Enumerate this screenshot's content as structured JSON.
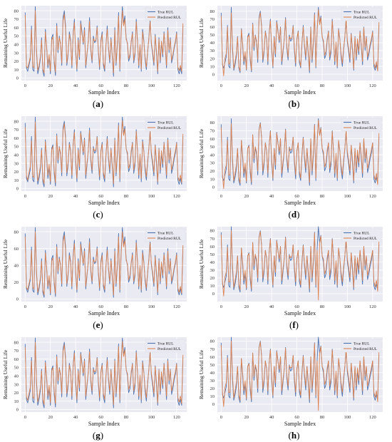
{
  "figure": {
    "panels": [
      {
        "caption_letter": "a"
      },
      {
        "caption_letter": "b"
      },
      {
        "caption_letter": "c"
      },
      {
        "caption_letter": "d"
      },
      {
        "caption_letter": "e"
      },
      {
        "caption_letter": "f"
      },
      {
        "caption_letter": "g"
      },
      {
        "caption_letter": "h"
      }
    ]
  },
  "chart_data": [
    {
      "panel": "a",
      "type": "line",
      "xlabel": "Sample Index",
      "ylabel": "Remaining Useful Life",
      "xlim": [
        -3,
        128
      ],
      "ylim": [
        -3,
        86
      ],
      "xticks": [
        0,
        20,
        40,
        60,
        80,
        100,
        120
      ],
      "yticks": [
        0,
        10,
        20,
        30,
        40,
        50,
        60,
        70,
        80
      ],
      "grid": true,
      "legend_position": "top-right",
      "legend": [
        "True RUL",
        "Predicted RUL"
      ],
      "colors": {
        "true": "#4c72b0",
        "pred": "#dd8452",
        "background": "#eaeaf2"
      }
    },
    {
      "panel": "b",
      "type": "line",
      "xlabel": "Sample Index",
      "ylabel": "Remaining Useful Life",
      "xlim": [
        -3,
        128
      ],
      "ylim": [
        -8,
        87
      ],
      "xticks": [
        0,
        20,
        40,
        60,
        80,
        100,
        120
      ],
      "yticks": [
        0,
        10,
        20,
        30,
        40,
        50,
        60,
        70,
        80
      ],
      "grid": true,
      "legend_position": "top-right",
      "legend": [
        "True RUL",
        "Predicted RUL"
      ],
      "colors": {
        "true": "#4c72b0",
        "pred": "#dd8452",
        "background": "#eaeaf2"
      }
    },
    {
      "panel": "c",
      "type": "line",
      "xlabel": "Sample Index",
      "ylabel": "Remaining Useful Life",
      "xlim": [
        -3,
        128
      ],
      "ylim": [
        -3,
        86
      ],
      "xticks": [
        0,
        20,
        40,
        60,
        80,
        100,
        120
      ],
      "yticks": [
        0,
        10,
        20,
        30,
        40,
        50,
        60,
        70,
        80
      ],
      "grid": true,
      "legend_position": "top-right",
      "legend": [
        "True RUL",
        "Predicted RUL"
      ],
      "colors": {
        "true": "#4c72b0",
        "pred": "#dd8452",
        "background": "#eaeaf2"
      }
    },
    {
      "panel": "d",
      "type": "line",
      "xlabel": "Sample Index",
      "ylabel": "Remaining Useful Life",
      "xlim": [
        -3,
        128
      ],
      "ylim": [
        -5,
        88
      ],
      "xticks": [
        0,
        20,
        40,
        60,
        80,
        100,
        120
      ],
      "yticks": [
        0,
        10,
        20,
        30,
        40,
        50,
        60,
        70,
        80
      ],
      "grid": true,
      "legend_position": "top-right",
      "legend": [
        "True RUL",
        "Predicted RUL"
      ],
      "colors": {
        "true": "#4c72b0",
        "pred": "#dd8452",
        "background": "#eaeaf2"
      }
    },
    {
      "panel": "e",
      "type": "line",
      "xlabel": "Sample Index",
      "ylabel": "Remaining Useful Life",
      "xlim": [
        -3,
        128
      ],
      "ylim": [
        -3,
        86
      ],
      "xticks": [
        0,
        20,
        40,
        60,
        80,
        100,
        120
      ],
      "yticks": [
        0,
        20,
        40,
        60,
        80
      ],
      "grid": true,
      "legend_position": "top-right",
      "legend": [
        "True RUL",
        "Predicted RUL"
      ],
      "colors": {
        "true": "#4c72b0",
        "pred": "#dd8452",
        "background": "#eaeaf2"
      }
    },
    {
      "panel": "f",
      "type": "line",
      "xlabel": "Sample Index",
      "ylabel": "Remaining Useful Life",
      "xlim": [
        -3,
        128
      ],
      "ylim": [
        -10,
        85
      ],
      "xticks": [
        0,
        20,
        40,
        60,
        80,
        100,
        120
      ],
      "yticks": [
        0,
        10,
        20,
        30,
        40,
        50,
        60,
        70,
        80
      ],
      "grid": true,
      "legend_position": "top-right",
      "legend": [
        "True RUL",
        "Predicted RUL"
      ],
      "colors": {
        "true": "#4c72b0",
        "pred": "#dd8452",
        "background": "#eaeaf2"
      }
    },
    {
      "panel": "g",
      "type": "line",
      "xlabel": "Sample Index",
      "ylabel": "Remaining Useful Life",
      "xlim": [
        -3,
        128
      ],
      "ylim": [
        -3,
        86
      ],
      "xticks": [
        0,
        20,
        40,
        60,
        80,
        100,
        120
      ],
      "yticks": [
        0,
        10,
        20,
        30,
        40,
        50,
        60,
        70,
        80
      ],
      "grid": true,
      "legend_position": "top-right",
      "legend": [
        "True RUL",
        "Predicted RUL"
      ],
      "colors": {
        "true": "#4c72b0",
        "pred": "#dd8452",
        "background": "#eaeaf2"
      }
    },
    {
      "panel": "h",
      "type": "line",
      "xlabel": "Sample Index",
      "ylabel": "Remaining Useful Life",
      "xlim": [
        -3,
        128
      ],
      "ylim": [
        -10,
        85
      ],
      "xticks": [
        0,
        20,
        40,
        60,
        80,
        100,
        120
      ],
      "yticks": [
        0,
        10,
        20,
        30,
        40,
        50,
        60,
        70,
        80
      ],
      "grid": true,
      "legend_position": "top-right",
      "legend": [
        "True RUL",
        "Predicted RUL"
      ],
      "colors": {
        "true": "#4c72b0",
        "pred": "#dd8452",
        "background": "#eaeaf2"
      }
    }
  ],
  "series": {
    "x_start": 0,
    "x_step": 1,
    "true_rul": [
      78,
      12,
      8,
      15,
      22,
      62,
      10,
      8,
      85,
      30,
      5,
      12,
      22,
      48,
      8,
      2,
      58,
      36,
      12,
      25,
      5,
      48,
      52,
      18,
      3,
      65,
      30,
      50,
      40,
      15,
      72,
      80,
      62,
      15,
      28,
      55,
      45,
      12,
      52,
      70,
      30,
      8,
      48,
      22,
      68,
      55,
      40,
      60,
      12,
      28,
      45,
      72,
      33,
      18,
      50,
      42,
      44,
      62,
      30,
      10,
      45,
      55,
      15,
      8,
      38,
      62,
      35,
      18,
      48,
      25,
      2,
      60,
      15,
      38,
      78,
      8,
      55,
      85,
      65,
      74,
      48,
      40,
      20,
      25,
      42,
      55,
      18,
      28,
      70,
      45,
      12,
      38,
      8,
      58,
      45,
      22,
      10,
      30,
      48,
      70,
      40,
      28,
      15,
      52,
      30,
      5,
      48,
      18,
      42,
      25,
      55,
      35,
      12,
      60,
      30,
      48,
      18,
      25,
      35,
      42,
      55,
      10,
      5,
      12,
      5,
      62
    ],
    "pred": {
      "a": [
        75,
        14,
        12,
        18,
        25,
        58,
        14,
        12,
        80,
        33,
        9,
        15,
        25,
        45,
        11,
        6,
        55,
        38,
        15,
        28,
        8,
        45,
        49,
        21,
        7,
        62,
        33,
        48,
        42,
        18,
        68,
        76,
        58,
        18,
        30,
        52,
        43,
        15,
        50,
        66,
        33,
        11,
        45,
        25,
        65,
        52,
        42,
        57,
        15,
        30,
        43,
        68,
        35,
        21,
        47,
        44,
        45,
        60,
        33,
        13,
        43,
        52,
        18,
        11,
        40,
        58,
        37,
        21,
        46,
        28,
        6,
        57,
        18,
        40,
        74,
        11,
        52,
        80,
        62,
        70,
        46,
        42,
        23,
        28,
        44,
        53,
        21,
        31,
        67,
        43,
        15,
        40,
        11,
        55,
        43,
        25,
        13,
        32,
        46,
        67,
        42,
        31,
        18,
        50,
        33,
        8,
        46,
        21,
        44,
        28,
        53,
        37,
        15,
        57,
        33,
        46,
        21,
        28,
        37,
        44,
        53,
        13,
        9,
        15,
        8,
        65
      ],
      "b": [
        74,
        15,
        -2,
        20,
        26,
        60,
        13,
        14,
        78,
        35,
        7,
        16,
        26,
        47,
        10,
        4,
        57,
        39,
        16,
        29,
        6,
        47,
        50,
        22,
        5,
        64,
        34,
        49,
        43,
        19,
        70,
        78,
        60,
        19,
        31,
        54,
        44,
        16,
        51,
        68,
        34,
        10,
        47,
        26,
        66,
        53,
        43,
        59,
        16,
        31,
        44,
        70,
        36,
        22,
        48,
        45,
        46,
        61,
        34,
        14,
        44,
        54,
        19,
        10,
        41,
        60,
        38,
        22,
        47,
        29,
        5,
        59,
        19,
        41,
        76,
        10,
        54,
        82,
        63,
        72,
        47,
        43,
        24,
        29,
        45,
        54,
        22,
        32,
        68,
        44,
        16,
        41,
        10,
        57,
        44,
        26,
        14,
        33,
        47,
        69,
        43,
        32,
        19,
        51,
        34,
        7,
        47,
        22,
        45,
        29,
        54,
        38,
        16,
        59,
        34,
        47,
        22,
        29,
        38,
        45,
        54,
        14,
        8,
        16,
        4,
        66
      ],
      "c": [
        73,
        15,
        10,
        19,
        26,
        57,
        15,
        13,
        79,
        34,
        9,
        16,
        26,
        46,
        12,
        6,
        56,
        39,
        16,
        29,
        8,
        46,
        50,
        22,
        7,
        63,
        34,
        49,
        43,
        19,
        69,
        77,
        59,
        19,
        31,
        53,
        44,
        16,
        51,
        67,
        34,
        12,
        46,
        26,
        66,
        53,
        43,
        58,
        16,
        31,
        44,
        69,
        36,
        22,
        48,
        45,
        46,
        61,
        34,
        14,
        44,
        53,
        19,
        12,
        41,
        59,
        38,
        22,
        47,
        29,
        6,
        58,
        19,
        41,
        75,
        12,
        53,
        81,
        63,
        71,
        47,
        43,
        24,
        29,
        45,
        54,
        22,
        32,
        68,
        44,
        16,
        41,
        12,
        56,
        44,
        26,
        14,
        33,
        47,
        68,
        43,
        32,
        19,
        51,
        34,
        8,
        47,
        22,
        45,
        29,
        54,
        38,
        16,
        58,
        34,
        47,
        22,
        29,
        38,
        45,
        54,
        14,
        9,
        16,
        7,
        65
      ],
      "d": [
        74,
        16,
        -2,
        21,
        27,
        58,
        15,
        15,
        79,
        36,
        8,
        17,
        27,
        48,
        12,
        5,
        58,
        40,
        17,
        30,
        7,
        48,
        51,
        23,
        6,
        65,
        35,
        50,
        44,
        20,
        71,
        79,
        61,
        20,
        32,
        55,
        45,
        17,
        52,
        69,
        35,
        11,
        48,
        27,
        67,
        54,
        44,
        60,
        17,
        32,
        45,
        71,
        37,
        23,
        49,
        46,
        47,
        62,
        35,
        15,
        45,
        55,
        20,
        11,
        42,
        61,
        39,
        23,
        48,
        30,
        6,
        60,
        20,
        42,
        77,
        11,
        55,
        83,
        64,
        73,
        48,
        44,
        25,
        30,
        46,
        55,
        23,
        33,
        69,
        45,
        17,
        42,
        11,
        58,
        45,
        27,
        15,
        34,
        48,
        70,
        44,
        33,
        20,
        52,
        35,
        8,
        48,
        23,
        46,
        30,
        55,
        39,
        17,
        60,
        35,
        48,
        23,
        30,
        39,
        46,
        55,
        15,
        9,
        17,
        3,
        67
      ],
      "e": [
        74,
        14,
        11,
        18,
        25,
        58,
        14,
        12,
        80,
        33,
        8,
        15,
        25,
        45,
        11,
        5,
        55,
        38,
        15,
        28,
        7,
        45,
        49,
        21,
        6,
        62,
        33,
        48,
        42,
        18,
        68,
        76,
        58,
        18,
        30,
        52,
        43,
        15,
        50,
        66,
        33,
        11,
        45,
        25,
        65,
        52,
        42,
        57,
        15,
        30,
        43,
        68,
        35,
        21,
        47,
        44,
        45,
        60,
        33,
        13,
        43,
        52,
        18,
        11,
        40,
        58,
        37,
        21,
        46,
        28,
        5,
        57,
        18,
        40,
        74,
        11,
        52,
        80,
        62,
        70,
        46,
        42,
        23,
        28,
        44,
        53,
        21,
        31,
        67,
        43,
        15,
        40,
        11,
        55,
        43,
        25,
        13,
        32,
        46,
        67,
        42,
        31,
        18,
        50,
        33,
        8,
        46,
        21,
        44,
        28,
        53,
        37,
        15,
        57,
        33,
        46,
        21,
        28,
        37,
        44,
        53,
        13,
        8,
        15,
        7,
        64
      ],
      "f": [
        75,
        16,
        -3,
        21,
        27,
        59,
        15,
        15,
        80,
        36,
        8,
        17,
        27,
        48,
        12,
        5,
        58,
        40,
        17,
        30,
        7,
        48,
        51,
        23,
        6,
        65,
        35,
        50,
        44,
        20,
        71,
        79,
        61,
        20,
        32,
        55,
        45,
        17,
        52,
        69,
        35,
        11,
        48,
        27,
        67,
        54,
        44,
        60,
        17,
        32,
        45,
        71,
        37,
        23,
        49,
        46,
        47,
        62,
        35,
        15,
        45,
        55,
        20,
        11,
        42,
        61,
        39,
        23,
        48,
        30,
        6,
        60,
        20,
        42,
        77,
        11,
        55,
        -8,
        64,
        73,
        48,
        44,
        25,
        30,
        46,
        55,
        23,
        33,
        69,
        45,
        17,
        42,
        11,
        58,
        45,
        27,
        15,
        34,
        48,
        70,
        44,
        33,
        20,
        52,
        35,
        8,
        48,
        23,
        46,
        30,
        55,
        39,
        17,
        60,
        35,
        48,
        23,
        30,
        39,
        46,
        55,
        15,
        9,
        17,
        3,
        67
      ],
      "g": [
        74,
        15,
        11,
        19,
        26,
        58,
        15,
        13,
        80,
        34,
        9,
        16,
        26,
        46,
        12,
        6,
        56,
        39,
        16,
        29,
        8,
        46,
        50,
        22,
        7,
        63,
        34,
        49,
        43,
        19,
        69,
        77,
        59,
        19,
        31,
        53,
        44,
        16,
        51,
        67,
        34,
        12,
        46,
        26,
        66,
        53,
        43,
        58,
        16,
        31,
        44,
        69,
        36,
        22,
        48,
        45,
        46,
        61,
        34,
        14,
        44,
        53,
        19,
        12,
        41,
        59,
        38,
        22,
        47,
        29,
        6,
        58,
        19,
        41,
        75,
        12,
        53,
        81,
        63,
        71,
        47,
        43,
        24,
        29,
        45,
        54,
        22,
        32,
        68,
        44,
        16,
        41,
        12,
        56,
        44,
        26,
        14,
        33,
        47,
        68,
        43,
        32,
        19,
        51,
        34,
        8,
        47,
        22,
        45,
        29,
        54,
        38,
        16,
        58,
        34,
        47,
        22,
        29,
        38,
        45,
        54,
        14,
        9,
        16,
        7,
        65
      ],
      "h": [
        75,
        16,
        -3,
        21,
        27,
        59,
        15,
        15,
        80,
        36,
        8,
        17,
        27,
        48,
        12,
        5,
        58,
        40,
        17,
        30,
        7,
        48,
        51,
        23,
        6,
        65,
        35,
        50,
        44,
        20,
        71,
        79,
        61,
        20,
        32,
        55,
        45,
        17,
        52,
        69,
        35,
        11,
        48,
        27,
        67,
        54,
        44,
        60,
        17,
        32,
        45,
        71,
        37,
        23,
        49,
        46,
        47,
        62,
        35,
        15,
        45,
        55,
        20,
        11,
        42,
        61,
        39,
        23,
        48,
        30,
        6,
        60,
        20,
        42,
        77,
        11,
        55,
        -8,
        64,
        73,
        48,
        44,
        25,
        30,
        46,
        55,
        23,
        33,
        69,
        45,
        17,
        42,
        11,
        58,
        45,
        27,
        15,
        34,
        48,
        70,
        44,
        33,
        20,
        52,
        35,
        8,
        48,
        23,
        46,
        30,
        55,
        39,
        17,
        60,
        35,
        48,
        23,
        30,
        39,
        46,
        55,
        15,
        9,
        17,
        3,
        67
      ]
    }
  }
}
